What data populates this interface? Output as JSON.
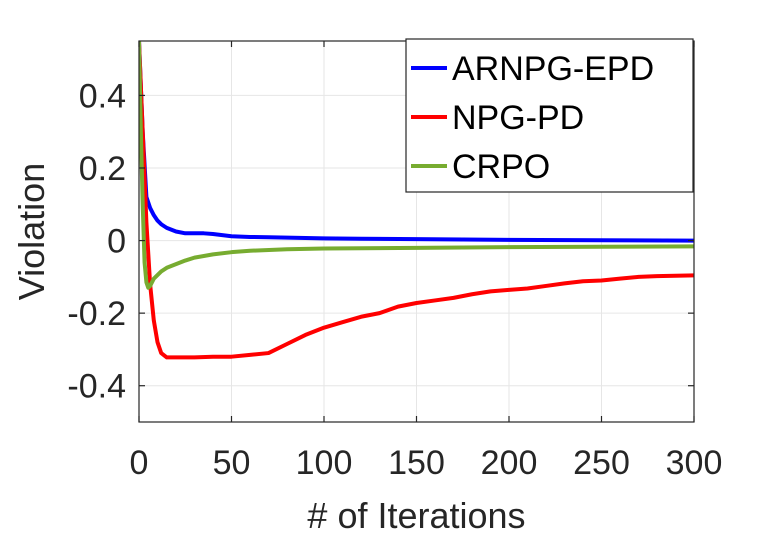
{
  "chart_data": {
    "type": "line",
    "xlabel": "# of Iterations",
    "ylabel": "Violation",
    "xlim": [
      0,
      300
    ],
    "ylim": [
      -0.5,
      0.55
    ],
    "xticks": [
      0,
      50,
      100,
      150,
      200,
      250,
      300
    ],
    "yticks": [
      -0.4,
      -0.2,
      0,
      0.2,
      0.4
    ],
    "xtick_labels": [
      "0",
      "50",
      "100",
      "150",
      "200",
      "250",
      "300"
    ],
    "ytick_labels": [
      "-0.4",
      "-0.2",
      "0",
      "0.2",
      "0.4"
    ],
    "grid": true,
    "legend_position": "top-right",
    "series": [
      {
        "name": "ARNPG-EPD",
        "color": "#0000ff",
        "x": [
          0,
          2,
          4,
          6,
          8,
          10,
          12,
          15,
          20,
          25,
          30,
          35,
          40,
          50,
          60,
          70,
          80,
          90,
          100,
          120,
          150,
          200,
          250,
          300
        ],
        "y": [
          0.55,
          0.3,
          0.12,
          0.09,
          0.07,
          0.055,
          0.045,
          0.035,
          0.025,
          0.02,
          0.02,
          0.02,
          0.018,
          0.012,
          0.01,
          0.009,
          0.008,
          0.007,
          0.006,
          0.005,
          0.004,
          0.002,
          0.001,
          0.0
        ]
      },
      {
        "name": "NPG-PD",
        "color": "#ff0000",
        "x": [
          0,
          2,
          4,
          6,
          8,
          10,
          12,
          15,
          20,
          30,
          40,
          50,
          60,
          70,
          80,
          90,
          100,
          110,
          120,
          130,
          140,
          150,
          160,
          170,
          180,
          190,
          200,
          210,
          220,
          230,
          240,
          250,
          260,
          270,
          280,
          290,
          300
        ],
        "y": [
          0.55,
          0.3,
          0.05,
          -0.12,
          -0.22,
          -0.28,
          -0.31,
          -0.322,
          -0.322,
          -0.322,
          -0.32,
          -0.32,
          -0.315,
          -0.31,
          -0.285,
          -0.26,
          -0.24,
          -0.225,
          -0.21,
          -0.2,
          -0.182,
          -0.172,
          -0.165,
          -0.158,
          -0.148,
          -0.14,
          -0.136,
          -0.132,
          -0.125,
          -0.118,
          -0.112,
          -0.11,
          -0.105,
          -0.1,
          -0.098,
          -0.097,
          -0.096
        ]
      },
      {
        "name": "CRPO",
        "color": "#77ac30",
        "x": [
          0,
          1,
          2,
          3,
          4,
          5,
          6,
          7,
          8,
          10,
          12,
          15,
          20,
          25,
          30,
          40,
          50,
          60,
          80,
          100,
          150,
          200,
          250,
          300
        ],
        "y": [
          0.55,
          0.3,
          0.1,
          -0.06,
          -0.115,
          -0.13,
          -0.125,
          -0.115,
          -0.105,
          -0.095,
          -0.085,
          -0.075,
          -0.065,
          -0.055,
          -0.047,
          -0.038,
          -0.032,
          -0.028,
          -0.024,
          -0.022,
          -0.02,
          -0.018,
          -0.017,
          -0.016
        ]
      }
    ]
  }
}
